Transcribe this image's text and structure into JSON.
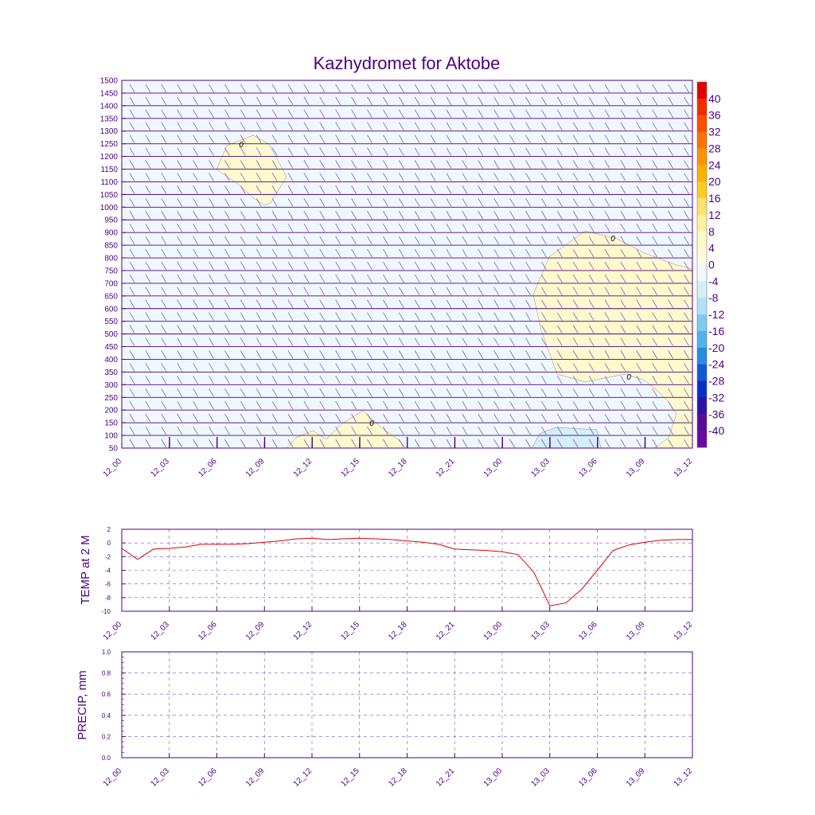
{
  "title": "Kazhydromet for Aktobe",
  "colors": {
    "axis": "#4b0082",
    "title": "#4b0082",
    "temp_line": "#e00000",
    "warm_fill": "#fffacd",
    "cold_fill": "#d4eefa",
    "neutral_fill": "#f0f8ff",
    "grid": "#6a5acd"
  },
  "time_ticks": [
    "12_00",
    "12_03",
    "12_06",
    "12_09",
    "12_12",
    "12_15",
    "12_18",
    "12_21",
    "13_00",
    "13_03",
    "13_06",
    "13_09",
    "13_12"
  ],
  "chart_data": [
    {
      "type": "heatmap",
      "title": "Kazhydromet for Aktobe",
      "xlabel": "",
      "ylabel": "",
      "x_range": [
        "12_00",
        "13_12"
      ],
      "y_ticks": [
        50,
        100,
        150,
        200,
        250,
        300,
        350,
        400,
        450,
        500,
        550,
        600,
        650,
        700,
        750,
        800,
        850,
        900,
        950,
        1000,
        1050,
        1100,
        1150,
        1200,
        1250,
        1300,
        1350,
        1400,
        1450,
        1500
      ],
      "ylim": [
        50,
        1500
      ],
      "colorbar": {
        "labels": [
          "40",
          "36",
          "32",
          "28",
          "24",
          "20",
          "16",
          "12",
          "8",
          "4",
          "0",
          "-4",
          "-8",
          "-12",
          "-16",
          "-20",
          "-24",
          "-28",
          "-32",
          "-36",
          "-40"
        ],
        "colors": [
          "#e60000",
          "#f52b00",
          "#fc4e00",
          "#fd7200",
          "#fd9400",
          "#fdb100",
          "#fdcc1f",
          "#fde16b",
          "#fdf0a0",
          "#fff8c8",
          "#fffbe0",
          "#f0f8ff",
          "#d4eefa",
          "#b2e0f7",
          "#7dc9f2",
          "#4fb2ec",
          "#2a8ae0",
          "#1259d6",
          "#0a2fc9",
          "#2a14a8",
          "#5a0a9a",
          "#6a0aa0"
        ]
      },
      "contour_labels": [
        "0",
        "0",
        "0",
        "0"
      ],
      "grid": true
    },
    {
      "type": "line",
      "ylabel": "TEMP at 2 M",
      "ylim": [
        -10,
        2
      ],
      "y_ticks": [
        "-10",
        "-8",
        "-6",
        "-4",
        "-2",
        "0",
        "2"
      ],
      "x": [
        "12_00",
        "12_01",
        "12_02",
        "12_03",
        "12_04",
        "12_05",
        "12_06",
        "12_07",
        "12_08",
        "12_09",
        "12_10",
        "12_11",
        "12_12",
        "12_13",
        "12_14",
        "12_15",
        "12_16",
        "12_17",
        "12_18",
        "12_19",
        "12_20",
        "12_21",
        "12_22",
        "12_23",
        "13_00",
        "13_01",
        "13_02",
        "13_03",
        "13_04",
        "13_05",
        "13_06",
        "13_07",
        "13_08",
        "13_09",
        "13_10",
        "13_11",
        "13_12"
      ],
      "series": [
        {
          "values": [
            -0.8,
            -2.4,
            -0.9,
            -0.8,
            -0.6,
            -0.2,
            -0.2,
            -0.2,
            -0.1,
            0.1,
            0.3,
            0.6,
            0.7,
            0.5,
            0.6,
            0.7,
            0.6,
            0.5,
            0.3,
            0.1,
            -0.2,
            -0.9,
            -1.0,
            -1.1,
            -1.3,
            -1.7,
            -4.3,
            -9.2,
            -8.8,
            -6.8,
            -4.0,
            -1.1,
            -0.3,
            0.1,
            0.4,
            0.5,
            0.5
          ]
        }
      ],
      "grid": true
    },
    {
      "type": "line",
      "ylabel": "PRECIP, mm",
      "ylim": [
        0.0,
        1.0
      ],
      "y_ticks": [
        "0.0",
        "0.2",
        "0.4",
        "0.6",
        "0.8",
        "1.0"
      ],
      "series": [],
      "grid": true
    }
  ]
}
